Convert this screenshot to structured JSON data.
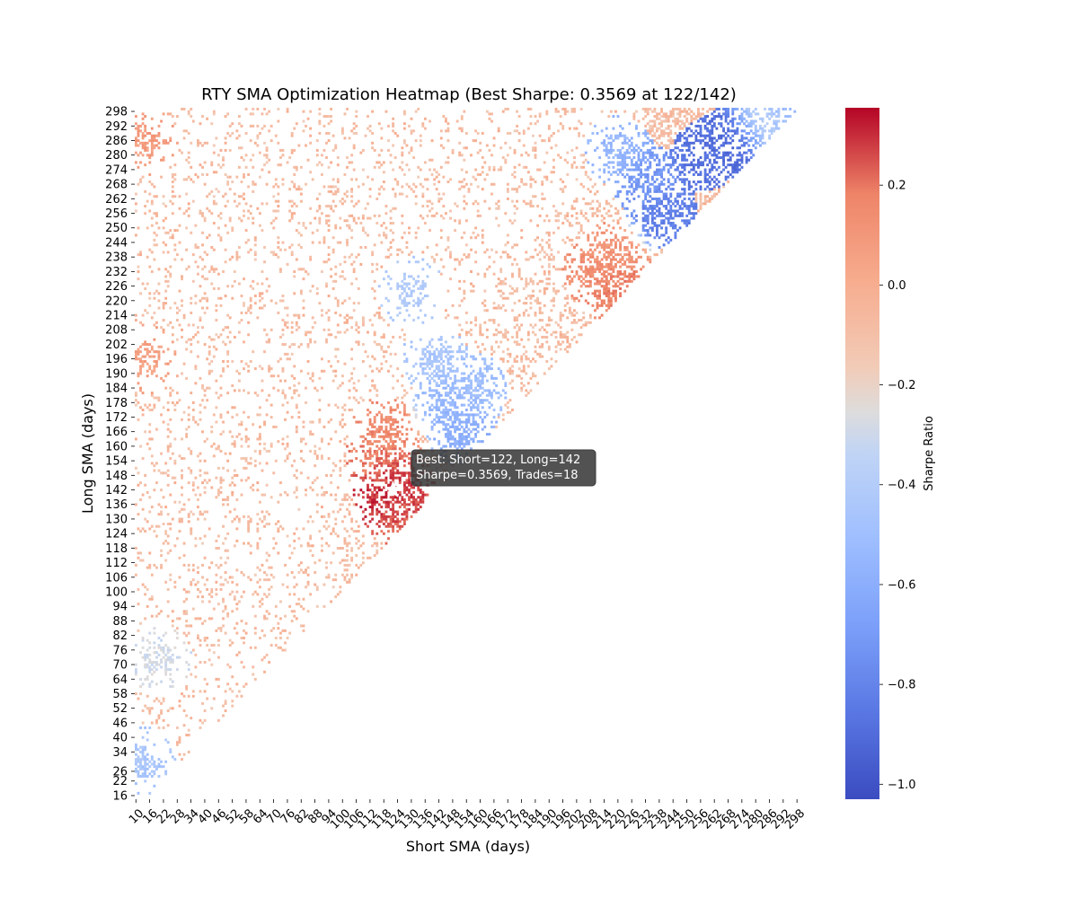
{
  "chart_data": {
    "type": "heatmap",
    "title": "RTY SMA Optimization Heatmap (Best Sharpe: 0.3569 at 122/142)",
    "xlabel": "Short SMA (days)",
    "ylabel": "Long SMA (days)",
    "colorbar_label": "Sharpe Ratio",
    "colormap": "coolwarm",
    "value_range": [
      -1.03,
      0.355
    ],
    "x_range": [
      10,
      300
    ],
    "y_range": [
      15,
      300
    ],
    "x_tick_labels": [
      "10",
      "16",
      "22",
      "28",
      "34",
      "40",
      "46",
      "52",
      "58",
      "64",
      "70",
      "76",
      "82",
      "88",
      "94",
      "100",
      "106",
      "112",
      "118",
      "124",
      "130",
      "136",
      "142",
      "148",
      "154",
      "160",
      "166",
      "172",
      "178",
      "184",
      "190",
      "196",
      "202",
      "208",
      "214",
      "220",
      "226",
      "232",
      "238",
      "244",
      "250",
      "256",
      "262",
      "268",
      "274",
      "280",
      "286",
      "292",
      "298"
    ],
    "y_tick_labels": [
      "16",
      "22",
      "26",
      "34",
      "40",
      "46",
      "52",
      "58",
      "64",
      "70",
      "76",
      "82",
      "88",
      "94",
      "100",
      "106",
      "112",
      "118",
      "124",
      "130",
      "136",
      "142",
      "148",
      "154",
      "160",
      "166",
      "172",
      "178",
      "184",
      "190",
      "196",
      "202",
      "208",
      "214",
      "220",
      "226",
      "232",
      "238",
      "244",
      "250",
      "256",
      "262",
      "268",
      "274",
      "280",
      "286",
      "292",
      "298"
    ],
    "colorbar_ticks": [
      {
        "value": 0.2,
        "label": "0.2"
      },
      {
        "value": 0.0,
        "label": "0.0"
      },
      {
        "value": -0.2,
        "label": "−0.2"
      },
      {
        "value": -0.4,
        "label": "−0.4"
      },
      {
        "value": -0.6,
        "label": "−0.6"
      },
      {
        "value": -0.8,
        "label": "−0.8"
      },
      {
        "value": -1.0,
        "label": "−1.0"
      }
    ],
    "best": {
      "short": 122,
      "long": 142,
      "sharpe": 0.3569,
      "trades": 18
    },
    "annotation_line1": "Best: Short=122, Long=142",
    "annotation_line2": "Sharpe=0.3569, Trades=18",
    "clusters": [
      {
        "short": 122,
        "long": 142,
        "value": 0.33
      },
      {
        "short": 120,
        "long": 140,
        "value": 0.3
      },
      {
        "short": 125,
        "long": 138,
        "value": 0.26
      },
      {
        "short": 126,
        "long": 132,
        "value": 0.22
      },
      {
        "short": 123,
        "long": 148,
        "value": 0.24
      },
      {
        "short": 116,
        "long": 156,
        "value": 0.18
      },
      {
        "short": 118,
        "long": 166,
        "value": 0.15
      },
      {
        "short": 220,
        "long": 228,
        "value": 0.2
      },
      {
        "short": 222,
        "long": 222,
        "value": 0.16
      },
      {
        "short": 210,
        "long": 232,
        "value": 0.14
      },
      {
        "short": 218,
        "long": 238,
        "value": 0.1
      },
      {
        "short": 14,
        "long": 196,
        "value": 0.06
      },
      {
        "short": 14,
        "long": 286,
        "value": 0.08
      },
      {
        "short": 130,
        "long": 224,
        "value": -0.42
      },
      {
        "short": 152,
        "long": 166,
        "value": -0.6
      },
      {
        "short": 146,
        "long": 178,
        "value": -0.55
      },
      {
        "short": 140,
        "long": 196,
        "value": -0.45
      },
      {
        "short": 158,
        "long": 184,
        "value": -0.5
      },
      {
        "short": 240,
        "long": 256,
        "value": -0.82
      },
      {
        "short": 258,
        "long": 280,
        "value": -0.88
      },
      {
        "short": 272,
        "long": 288,
        "value": -0.92
      },
      {
        "short": 282,
        "long": 294,
        "value": -0.3
      },
      {
        "short": 292,
        "long": 298,
        "value": -0.55
      },
      {
        "short": 232,
        "long": 270,
        "value": -0.72
      },
      {
        "short": 220,
        "long": 282,
        "value": -0.55
      },
      {
        "short": 14,
        "long": 30,
        "value": -0.45
      },
      {
        "short": 20,
        "long": 72,
        "value": -0.28
      }
    ]
  }
}
